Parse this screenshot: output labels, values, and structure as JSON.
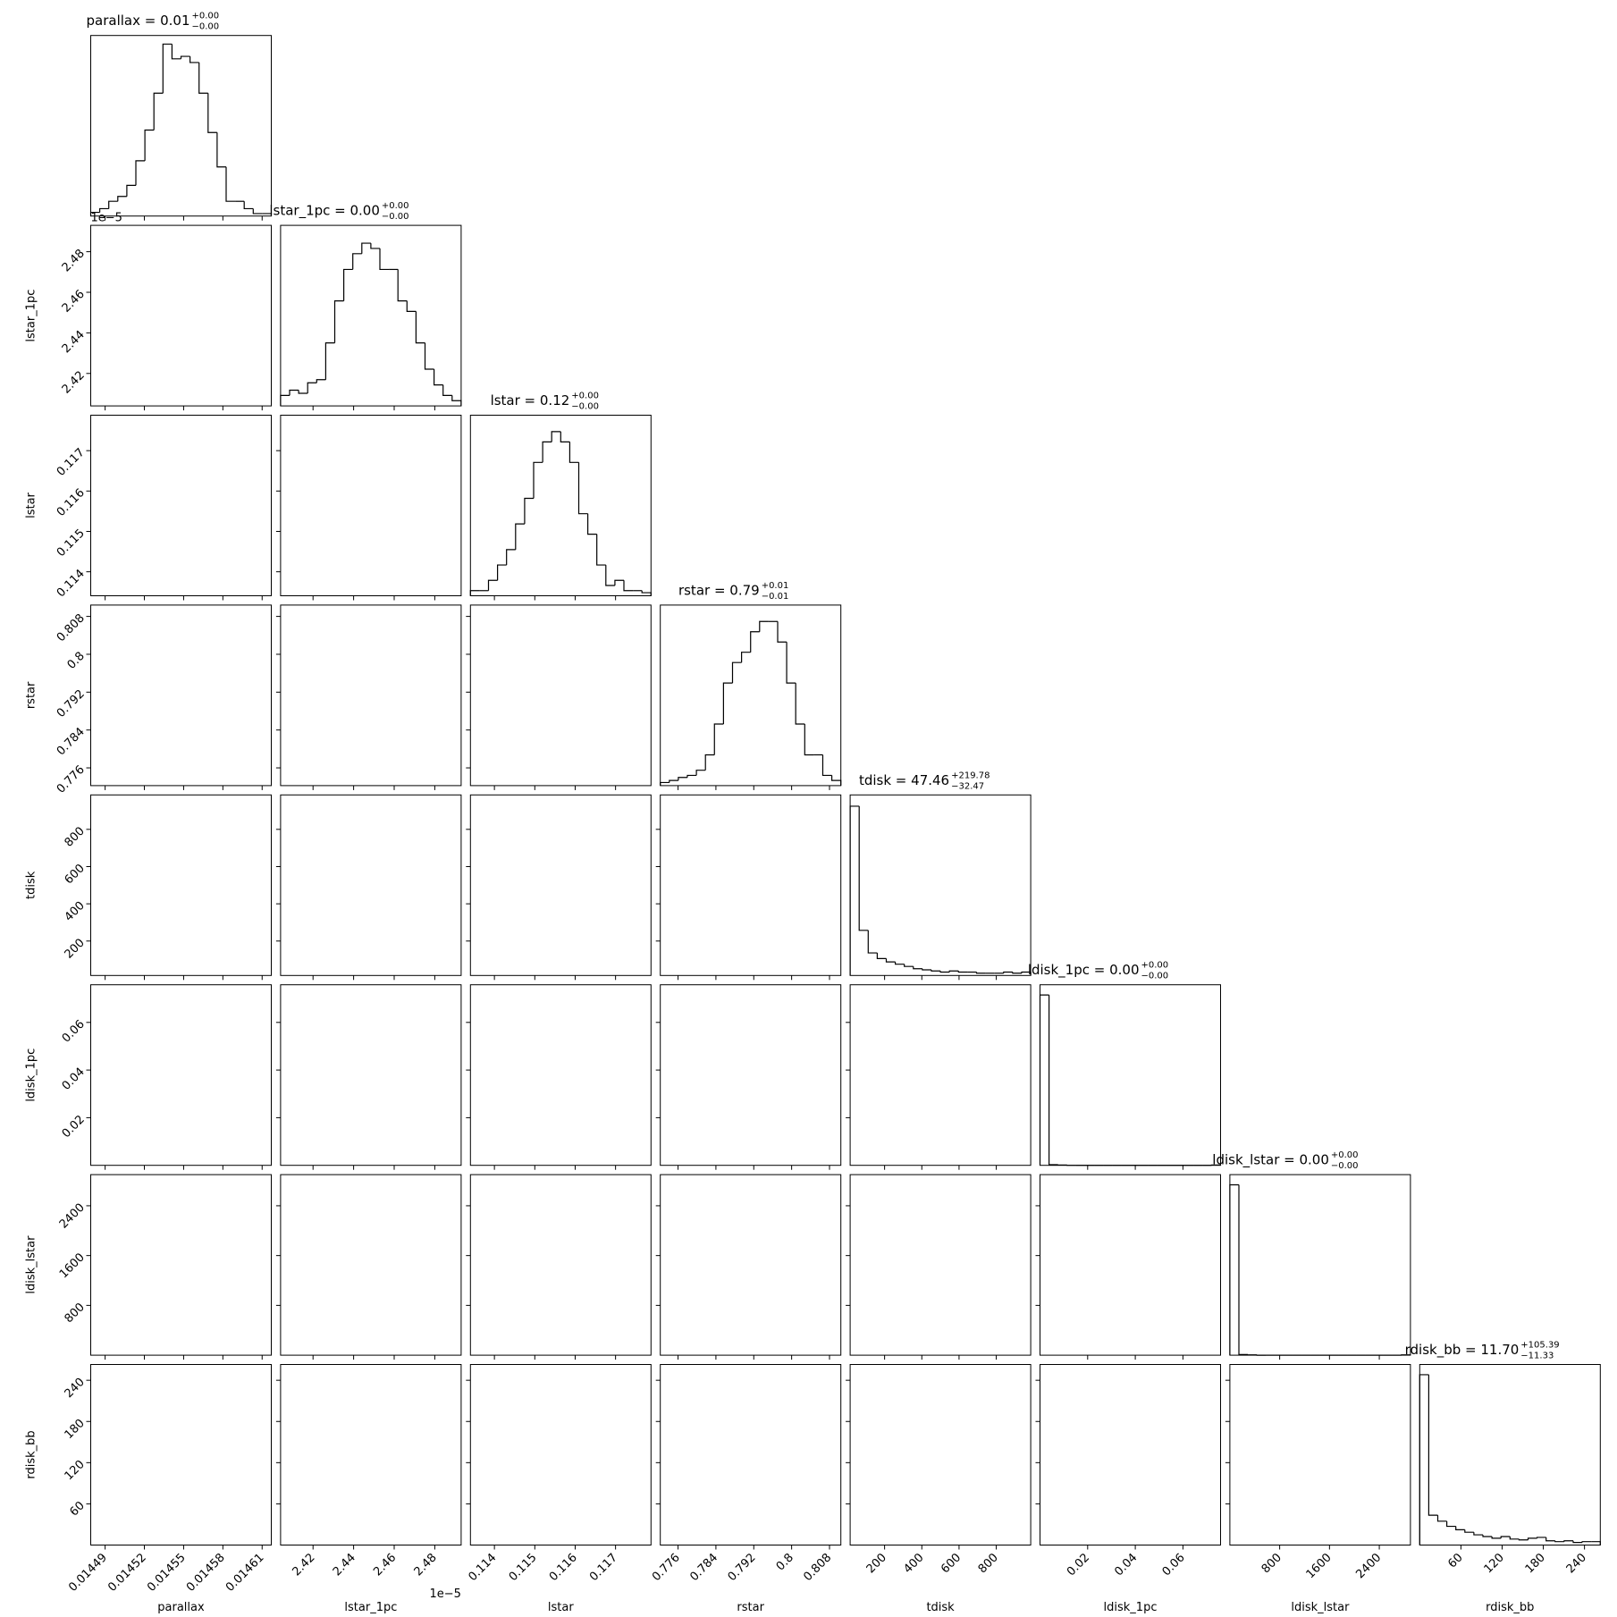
{
  "chart_data": [
    {
      "type": "histogram",
      "label": "parallax",
      "title": "parallax = 0.01",
      "title_plus": "+0.00",
      "title_minus": "−0.00",
      "xlim": [
        0.014479,
        0.014617
      ],
      "xticks": [
        0.01449,
        0.01452,
        0.01455,
        0.01458,
        0.01461
      ],
      "ylim": [
        0,
        1470
      ],
      "bins": [
        0.014479,
        0.0144859,
        0.0144928,
        0.0144997,
        0.0145066,
        0.0145135,
        0.0145204,
        0.0145273,
        0.0145342,
        0.0145411,
        0.014548,
        0.0145549,
        0.0145618,
        0.0145687,
        0.0145756,
        0.0145825,
        0.0145894,
        0.0145963,
        0.0146032,
        0.0146101,
        0.014617
      ],
      "values": [
        30,
        60,
        120,
        160,
        250,
        450,
        700,
        1000,
        1400,
        1280,
        1300,
        1250,
        1000,
        680,
        400,
        120,
        120,
        60,
        20,
        20
      ]
    },
    {
      "type": "histogram",
      "label": "lstar_1pc",
      "title": "lstar_1pc = 0.00",
      "title_plus": "+0.00",
      "title_minus": "−0.00",
      "offset_text": "1e−5",
      "xlim": [
        2.404e-05,
        2.493e-05
      ],
      "xticks": [
        {
          "value": 2.42e-05,
          "label": "2.42"
        },
        {
          "value": 2.44e-05,
          "label": "2.44"
        },
        {
          "value": 2.46e-05,
          "label": "2.46"
        },
        {
          "value": 2.48e-05,
          "label": "2.48"
        }
      ],
      "ylim": [
        0,
        172
      ],
      "bins": [
        2.404e-05,
        2.40845e-05,
        2.4129e-05,
        2.41735e-05,
        2.4218e-05,
        2.42625e-05,
        2.4307e-05,
        2.43515e-05,
        2.4396e-05,
        2.44405e-05,
        2.4485e-05,
        2.45295e-05,
        2.4574e-05,
        2.46185e-05,
        2.4663e-05,
        2.47075e-05,
        2.4752e-05,
        2.47965e-05,
        2.4841e-05,
        2.48855e-05,
        2.493e-05
      ],
      "values": [
        10,
        15,
        12,
        22,
        25,
        60,
        100,
        130,
        145,
        155,
        150,
        130,
        130,
        100,
        90,
        60,
        35,
        20,
        10,
        5
      ]
    },
    {
      "type": "histogram",
      "label": "lstar",
      "title": "lstar = 0.12",
      "title_plus": "+0.00",
      "title_minus": "−0.00",
      "xlim": [
        0.113406,
        0.117878
      ],
      "xticks": [
        0.114,
        0.115,
        0.116,
        0.117
      ],
      "ylim": [
        0,
        176
      ],
      "bins": [
        0.113406,
        0.11363,
        0.113853,
        0.114077,
        0.1143,
        0.114524,
        0.114748,
        0.114971,
        0.115195,
        0.115418,
        0.115642,
        0.115866,
        0.116089,
        0.116313,
        0.116536,
        0.11676,
        0.116984,
        0.117207,
        0.117431,
        0.117654,
        0.117878
      ],
      "values": [
        5,
        5,
        15,
        30,
        45,
        70,
        95,
        130,
        150,
        160,
        150,
        130,
        80,
        60,
        30,
        10,
        15,
        5,
        5,
        3
      ]
    },
    {
      "type": "histogram",
      "label": "rstar",
      "title": "rstar = 0.79",
      "title_plus": "+0.01",
      "title_minus": "−0.01",
      "xlim": [
        0.77225,
        0.8104
      ],
      "xticks": [
        0.776,
        0.784,
        0.792,
        0.8,
        0.808
      ],
      "ylim": [
        0,
        176
      ],
      "bins": [
        0.77225,
        0.77416,
        0.77606,
        0.77797,
        0.77988,
        0.78179,
        0.78369,
        0.7856,
        0.78751,
        0.78942,
        0.79133,
        0.79323,
        0.79514,
        0.79705,
        0.79895,
        0.80086,
        0.80277,
        0.80468,
        0.80658,
        0.80849,
        0.8104
      ],
      "values": [
        3,
        5,
        8,
        10,
        15,
        30,
        60,
        100,
        120,
        130,
        150,
        160,
        160,
        140,
        100,
        60,
        30,
        30,
        10,
        5
      ]
    },
    {
      "type": "histogram",
      "label": "tdisk",
      "title": "tdisk = 47.46",
      "title_plus": "+219.78",
      "title_minus": "−32.47",
      "xlim": [
        15,
        985
      ],
      "xticks": [
        200,
        400,
        600,
        800
      ],
      "ylim": [
        0,
        160
      ],
      "bins": [
        15,
        63.5,
        112,
        160.5,
        209,
        257.5,
        306,
        354.5,
        403,
        451.5,
        500,
        548.5,
        597,
        645.5,
        694,
        742.5,
        791,
        839.5,
        888,
        936.5,
        985
      ],
      "values": [
        150,
        40,
        20,
        15,
        12,
        10,
        8,
        6,
        5,
        4,
        3,
        4,
        3,
        3,
        2,
        2,
        2,
        3,
        2,
        3
      ]
    },
    {
      "type": "histogram",
      "label": "ldisk_1pc",
      "title": "ldisk_1pc = 0.00",
      "title_plus": "+0.00",
      "title_minus": "−0.00",
      "xlim": [
        0,
        0.0758
      ],
      "xticks": [
        0.02,
        0.04,
        0.06
      ],
      "ylim": [
        0,
        530
      ],
      "bins": [
        0,
        0.00379,
        0.00758,
        0.01137,
        0.01516,
        0.01895,
        0.02274,
        0.02653,
        0.03032,
        0.03411,
        0.0379,
        0.04169,
        0.04548,
        0.04927,
        0.05306,
        0.05685,
        0.06064,
        0.06443,
        0.06822,
        0.07201,
        0.0758
      ],
      "values": [
        500,
        2,
        1,
        0,
        0,
        0,
        0,
        0,
        0,
        0,
        0,
        0,
        0,
        0,
        0,
        0,
        0,
        0,
        0,
        1
      ]
    },
    {
      "type": "histogram",
      "label": "ldisk_lstar",
      "title": "ldisk_lstar = 0.00",
      "title_plus": "+0.00",
      "title_minus": "−0.00",
      "xlim": [
        0,
        2900
      ],
      "xticks": [
        800,
        1600,
        2400
      ],
      "ylim": [
        0,
        530
      ],
      "bins": [
        0,
        145,
        290,
        435,
        580,
        725,
        870,
        1015,
        1160,
        1305,
        1450,
        1595,
        1740,
        1885,
        2030,
        2175,
        2320,
        2465,
        2610,
        2755,
        2900
      ],
      "values": [
        500,
        2,
        1,
        0,
        0,
        0,
        0,
        0,
        0,
        0,
        0,
        0,
        0,
        0,
        0,
        0,
        0,
        0,
        0,
        1
      ]
    },
    {
      "type": "histogram",
      "label": "rdisk_bb",
      "title": "rdisk_bb = 11.70",
      "title_plus": "+105.39",
      "title_minus": "−11.33",
      "xlim": [
        0,
        263
      ],
      "xticks": [
        60,
        120,
        180,
        240
      ],
      "ylim": [
        0,
        212
      ],
      "bins": [
        0,
        13.15,
        26.3,
        39.45,
        52.6,
        65.75,
        78.9,
        92.05,
        105.2,
        118.35,
        131.5,
        144.65,
        157.8,
        170.95,
        184.1,
        197.25,
        210.4,
        223.55,
        236.7,
        249.85,
        263
      ],
      "values": [
        200,
        35,
        28,
        22,
        18,
        15,
        12,
        10,
        8,
        10,
        7,
        6,
        8,
        9,
        5,
        4,
        5,
        3,
        4,
        4
      ]
    }
  ]
}
